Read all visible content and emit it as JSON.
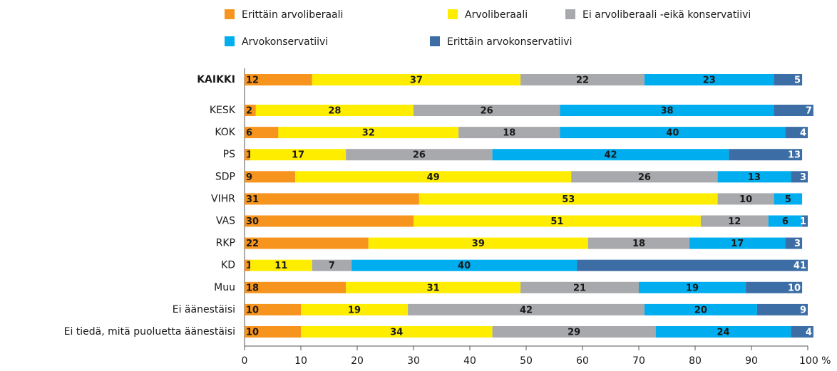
{
  "chart_data": {
    "type": "stacked-barh",
    "categories": [
      "KAIKKI",
      "KESK",
      "KOK",
      "PS",
      "SDP",
      "VIHR",
      "VAS",
      "RKP",
      "KD",
      "Muu",
      "Ei äänestäisi",
      "Ei tiedä, mitä puoluetta äänestäisi"
    ],
    "series": [
      {
        "name": "Erittäin arvoliberaali",
        "color": "#f7941d",
        "values": [
          12,
          2,
          6,
          1,
          9,
          31,
          30,
          22,
          1,
          18,
          10,
          10
        ]
      },
      {
        "name": "Arvoliberaali",
        "color": "#ffed00",
        "values": [
          37,
          28,
          32,
          17,
          49,
          53,
          51,
          39,
          11,
          31,
          19,
          34
        ]
      },
      {
        "name": "Ei arvoliberaali -eikä konservatiivi",
        "color": "#a7a9ac",
        "values": [
          22,
          26,
          18,
          26,
          26,
          10,
          12,
          18,
          7,
          21,
          42,
          29
        ]
      },
      {
        "name": "Arvokonservatiivi",
        "color": "#00aeef",
        "values": [
          23,
          38,
          40,
          42,
          13,
          5,
          6,
          17,
          40,
          19,
          20,
          24
        ]
      },
      {
        "name": "Erittäin arvokonservatiivi",
        "color": "#3c6ea5",
        "values": [
          5,
          7,
          4,
          13,
          3,
          null,
          1,
          3,
          41,
          10,
          9,
          4
        ]
      }
    ],
    "xlim": [
      0,
      100
    ],
    "xticks": [
      0,
      10,
      20,
      30,
      40,
      50,
      60,
      70,
      80,
      90,
      {
        "value": 100,
        "label": "100 %"
      }
    ]
  }
}
